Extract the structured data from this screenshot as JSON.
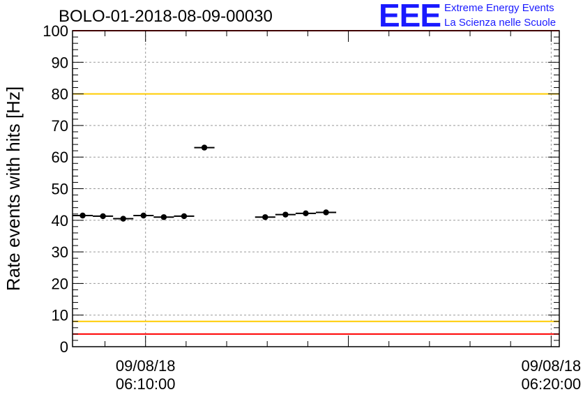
{
  "title": "BOLO-01-2018-08-09-00030",
  "logo": {
    "mark": "EEE",
    "line1": "Extreme Energy Events",
    "line2": "La Scienza nelle Scuole"
  },
  "chart_data": {
    "type": "scatter",
    "ylabel": "Rate events with hits [Hz]",
    "ylim": [
      0,
      100
    ],
    "yticks": [
      0,
      10,
      20,
      30,
      40,
      50,
      60,
      70,
      80,
      90,
      100
    ],
    "xticks": [
      {
        "minute": 10,
        "date": "09/08/18",
        "time": "06:10:00"
      },
      {
        "minute": 20,
        "date": "09/08/18",
        "time": "06:20:00"
      }
    ],
    "xlim_minutes": [
      8.2,
      20.2
    ],
    "grid": true,
    "threshold_lines": [
      {
        "y": 100,
        "color": "#ff0000"
      },
      {
        "y": 80,
        "color": "#ffcc00"
      },
      {
        "y": 8,
        "color": "#ffcc00"
      },
      {
        "y": 4,
        "color": "#ff0000"
      }
    ],
    "series": [
      {
        "marker_color": "#000000",
        "points": [
          {
            "x_start": 8.2,
            "x_end": 8.7,
            "y": 41.5
          },
          {
            "x_start": 8.7,
            "x_end": 9.2,
            "y": 41.3
          },
          {
            "x_start": 9.2,
            "x_end": 9.7,
            "y": 40.5
          },
          {
            "x_start": 9.7,
            "x_end": 10.2,
            "y": 41.5
          },
          {
            "x_start": 10.2,
            "x_end": 10.7,
            "y": 41.0
          },
          {
            "x_start": 10.7,
            "x_end": 11.2,
            "y": 41.3
          },
          {
            "x_start": 11.2,
            "x_end": 11.7,
            "y": 63.0
          },
          {
            "x_start": 12.7,
            "x_end": 13.2,
            "y": 41.0
          },
          {
            "x_start": 13.2,
            "x_end": 13.7,
            "y": 41.8
          },
          {
            "x_start": 13.7,
            "x_end": 14.2,
            "y": 42.2
          },
          {
            "x_start": 14.2,
            "x_end": 14.7,
            "y": 42.5
          }
        ]
      }
    ]
  }
}
